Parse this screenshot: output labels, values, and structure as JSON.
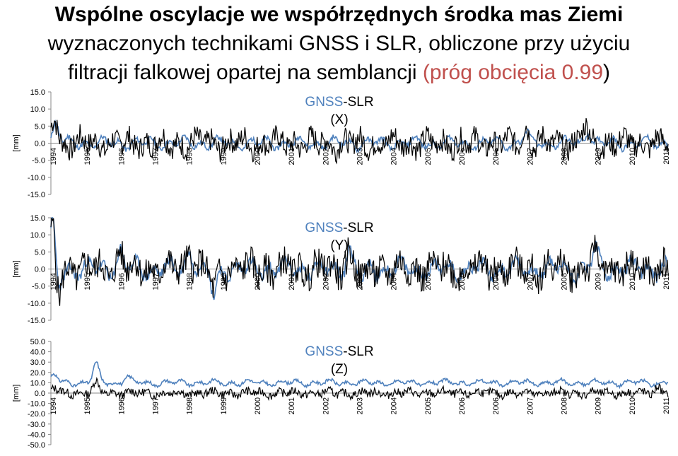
{
  "title": {
    "line1": "Wspólne oscylacje we współrzędnych środka mas Ziemi",
    "line2": "wyznaczonych technikami GNSS i SLR, obliczone przy użyciu",
    "line3_a": "filtracji falkowej opartej na semblancji ",
    "line3_b": "(próg obcięcia 0.99)",
    "line3_c": ")",
    "highlight_color": "#C0504D"
  },
  "colors": {
    "gnss": "#4F81BD",
    "slr": "#000000",
    "label_gnss": "#4F81BD"
  },
  "chart_data": [
    {
      "type": "line",
      "panel": "X",
      "label_gnss": "GNSS",
      "label_rest": "-SLR",
      "label_axis": "(X)",
      "ylabel": "[mm]",
      "ylim": [
        -15,
        15
      ],
      "yticks": [
        "15.0",
        "10.0",
        "5.0",
        "0.0",
        "-5.0",
        "-10.0",
        "-15.0"
      ],
      "xlim": [
        1994,
        2011.8
      ],
      "xticks": [
        "1994",
        "1995",
        "1996",
        "1997",
        "1998",
        "1999",
        "2000",
        "2001",
        "2002",
        "2003",
        "2004",
        "2005",
        "2006",
        "2006",
        "2007",
        "2008",
        "2009",
        "2010",
        "2011"
      ],
      "series": [
        {
          "color": "#4F81BD",
          "amp": 1.8,
          "seed": 11,
          "noise": 0.25,
          "extra": [
            [
              1994.15,
              6.0
            ],
            [
              2007.7,
              3.0
            ],
            [
              2009.5,
              4.0
            ]
          ]
        },
        {
          "color": "#000000",
          "amp": 2.2,
          "seed": 7,
          "noise": 1.0,
          "extra": [
            [
              1994.1,
              8.0
            ],
            [
              2007.7,
              5.0
            ],
            [
              2009.4,
              5.0
            ]
          ]
        }
      ]
    },
    {
      "type": "line",
      "panel": "Y",
      "label_gnss": "GNSS",
      "label_rest": "-SLR",
      "label_axis": "(Y)",
      "ylabel": "[mm]",
      "ylim": [
        -15,
        15
      ],
      "yticks": [
        "15.0",
        "10.0",
        "5.0",
        "0.0",
        "-5.0",
        "-10.0",
        "-15.0"
      ],
      "xlim": [
        1994,
        2011.8
      ],
      "xticks": [
        "1994",
        "1995",
        "1996",
        "1997",
        "1998",
        "1999",
        "2000",
        "2001",
        "2002",
        "2003",
        "2004",
        "2005",
        "2006",
        "2006",
        "2007",
        "2008",
        "2009",
        "2010",
        "2011"
      ],
      "series": [
        {
          "color": "#4F81BD",
          "amp": 2.8,
          "seed": 23,
          "noise": 0.35,
          "extra": [
            [
              1994.05,
              14.0
            ],
            [
              1994.2,
              -7.0
            ],
            [
              1996.0,
              5.0
            ],
            [
              1998.0,
              6.0
            ],
            [
              1998.7,
              -8.0
            ],
            [
              2002.6,
              6.0
            ],
            [
              2003.0,
              -3.0
            ],
            [
              2009.7,
              5.0
            ]
          ]
        },
        {
          "color": "#000000",
          "amp": 2.8,
          "seed": 5,
          "noise": 1.0,
          "extra": [
            [
              1994.05,
              13.0
            ],
            [
              1994.2,
              -9.0
            ],
            [
              1996.0,
              5.0
            ],
            [
              1998.0,
              5.5
            ],
            [
              1998.7,
              -7.0
            ],
            [
              2002.6,
              5.0
            ],
            [
              2003.0,
              -4.0
            ],
            [
              2009.7,
              4.5
            ]
          ]
        }
      ]
    },
    {
      "type": "line",
      "panel": "Z",
      "label_gnss": "GNSS",
      "label_rest": "-SLR",
      "label_axis": "(Z)",
      "ylabel": "[mm]",
      "ylim": [
        -50,
        50
      ],
      "yticks": [
        "50.0",
        "40.0",
        "30.0",
        "20.0",
        "10.0",
        "0.0",
        "-10.0",
        "-20.0",
        "-30.0",
        "-40.0",
        "-50.0"
      ],
      "xlim": [
        1994,
        2011.8
      ],
      "xticks": [
        "1994",
        "1995",
        "1996",
        "1997",
        "1998",
        "1999",
        "2000",
        "2001",
        "2002",
        "2003",
        "2004",
        "2005",
        "2006",
        "2006",
        "2007",
        "2008",
        "2009",
        "2010",
        "2011"
      ],
      "series": [
        {
          "color": "#4F81BD",
          "amp": 3.0,
          "seed": 31,
          "noise": 0.3,
          "offset": 10,
          "extra": [
            [
              1994.1,
              8.0
            ],
            [
              1995.3,
              18.0
            ],
            [
              1996.2,
              6.0
            ]
          ]
        },
        {
          "color": "#000000",
          "amp": 2.5,
          "seed": 13,
          "noise": 1.0,
          "offset": 0,
          "extra": [
            [
              1994.1,
              5.0
            ],
            [
              1995.3,
              10.0
            ],
            [
              2011.5,
              6.0
            ]
          ]
        }
      ]
    }
  ]
}
